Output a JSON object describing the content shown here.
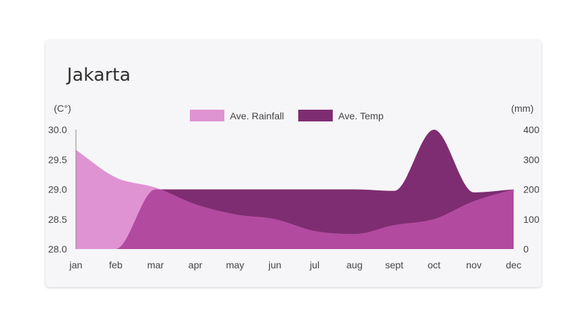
{
  "chart_data": {
    "type": "area",
    "title": "Jakarta",
    "categories": [
      "jan",
      "feb",
      "mar",
      "apr",
      "may",
      "jun",
      "jul",
      "aug",
      "sept",
      "oct",
      "nov",
      "dec"
    ],
    "y_left": {
      "unit": "(C°)",
      "ylim": [
        28.0,
        30.0
      ],
      "ticks": [
        "28.0",
        "28.5",
        "29.0",
        "29.5",
        "30.0"
      ]
    },
    "y_right": {
      "unit": "(mm)",
      "ylim": [
        0,
        400
      ],
      "ticks": [
        "0",
        "100",
        "200",
        "300",
        "400"
      ]
    },
    "series": [
      {
        "name": "Ave. Rainfall",
        "axis": "left",
        "color": "#e093d2",
        "values": [
          29.66,
          29.2,
          29.03,
          28.75,
          28.58,
          28.5,
          28.3,
          28.25,
          28.4,
          28.5,
          28.8,
          29.0
        ]
      },
      {
        "name": "Ave. Temp",
        "axis": "right",
        "color": "#7f2d72",
        "values": [
          0,
          0,
          200,
          200,
          200,
          200,
          200,
          200,
          195,
          400,
          190,
          200
        ]
      }
    ],
    "overlap_color": "#b24aa0",
    "legend_position": "top-center",
    "grid": false
  }
}
